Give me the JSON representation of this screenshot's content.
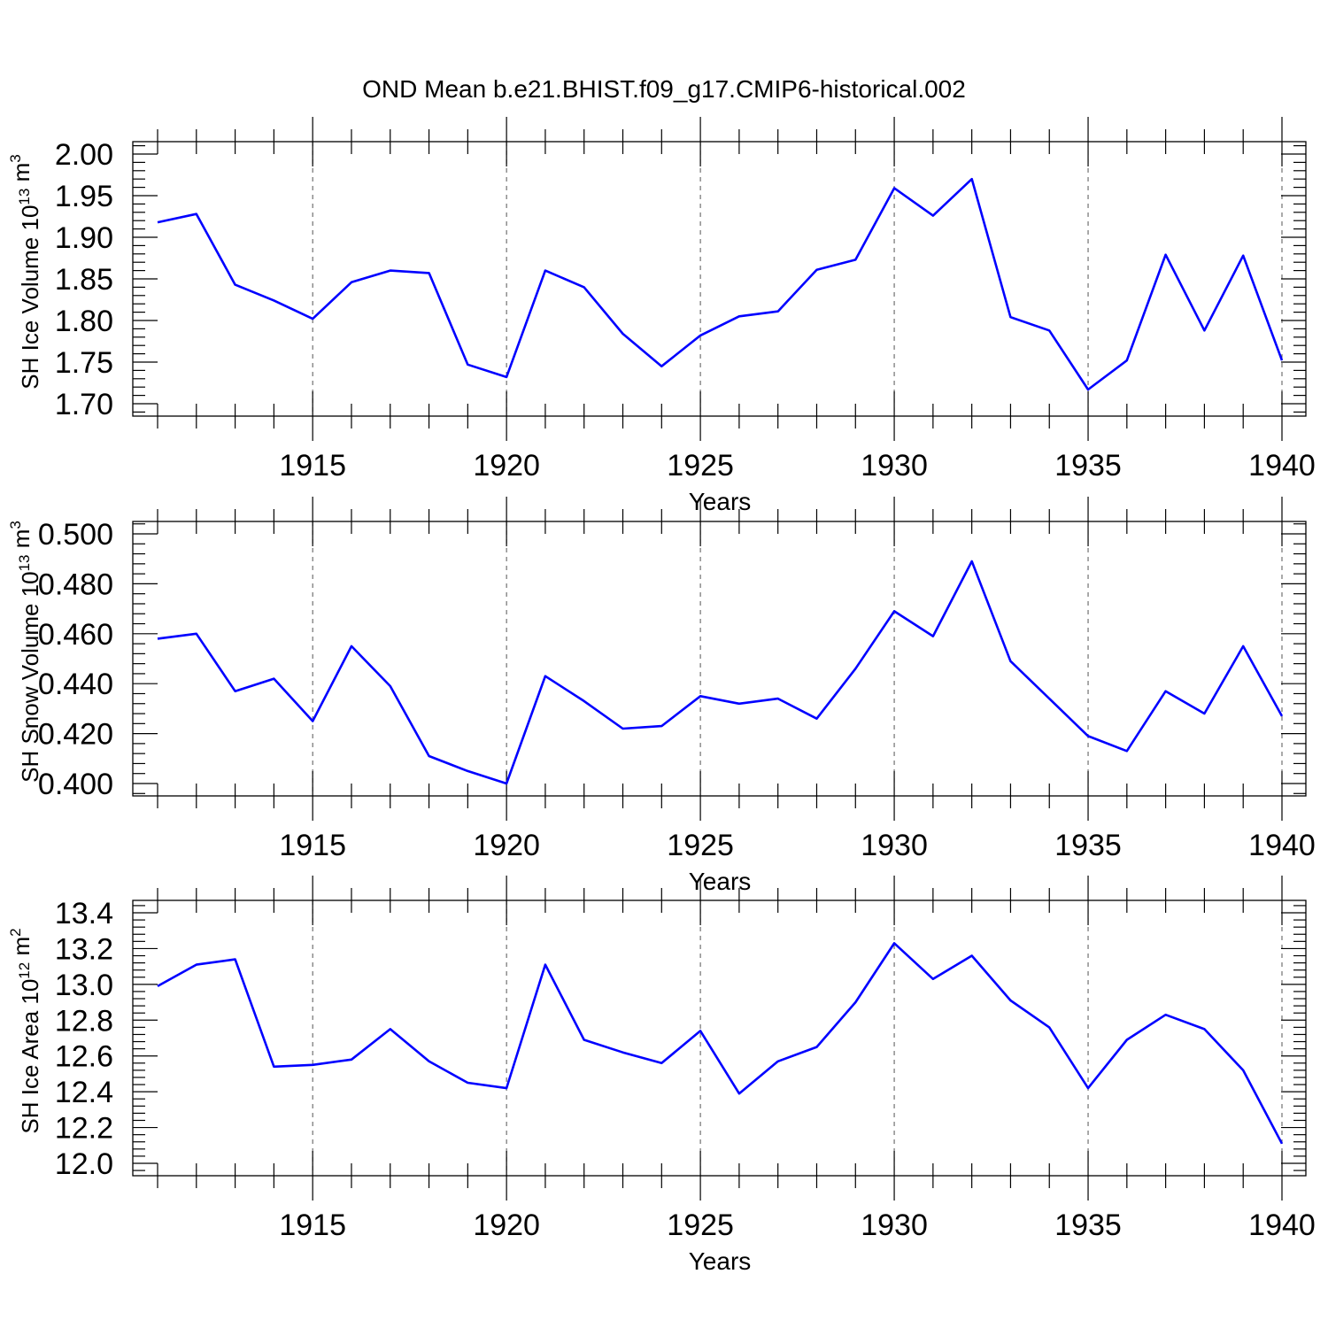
{
  "title": "OND Mean b.e21.BHIST.f09_g17.CMIP6-historical.002",
  "colors": {
    "series": "#0000ff",
    "grid": "#555555",
    "axis": "#000000"
  },
  "chart_data": [
    {
      "type": "line",
      "ylabel": {
        "main": "SH Ice Volume 10",
        "exp": "13",
        "mid": " m",
        "unit_exp": "3"
      },
      "xlabel": "Years",
      "xlim": [
        1911,
        1940
      ],
      "ylim": [
        1.7,
        2.0
      ],
      "x_ticks": [
        1915,
        1920,
        1925,
        1930,
        1935,
        1940
      ],
      "y_ticks": [
        "1.70",
        "1.75",
        "1.80",
        "1.85",
        "1.90",
        "1.95",
        "2.00"
      ],
      "grid": "vertical dashed at major x ticks",
      "x": [
        1911,
        1912,
        1913,
        1914,
        1915,
        1916,
        1917,
        1918,
        1919,
        1920,
        1921,
        1922,
        1923,
        1924,
        1925,
        1926,
        1927,
        1928,
        1929,
        1930,
        1931,
        1932,
        1933,
        1934,
        1935,
        1936,
        1937,
        1938,
        1939,
        1940
      ],
      "values": [
        1.918,
        1.928,
        1.843,
        1.824,
        1.802,
        1.846,
        1.86,
        1.857,
        1.747,
        1.732,
        1.86,
        1.84,
        1.784,
        1.745,
        1.782,
        1.805,
        1.811,
        1.861,
        1.873,
        1.959,
        1.926,
        1.97,
        1.804,
        1.788,
        1.717,
        1.752,
        1.879,
        1.788,
        1.878,
        1.752
      ]
    },
    {
      "type": "line",
      "ylabel": {
        "main": "SH Snow Volume 10",
        "exp": "13",
        "mid": " m",
        "unit_exp": "3"
      },
      "xlabel": "Years",
      "xlim": [
        1911,
        1940
      ],
      "ylim": [
        0.4,
        0.5
      ],
      "x_ticks": [
        1915,
        1920,
        1925,
        1930,
        1935,
        1940
      ],
      "y_ticks": [
        "0.400",
        "0.420",
        "0.440",
        "0.460",
        "0.480",
        "0.500"
      ],
      "grid": "vertical dashed at major x ticks",
      "x": [
        1911,
        1912,
        1913,
        1914,
        1915,
        1916,
        1917,
        1918,
        1919,
        1920,
        1921,
        1922,
        1923,
        1924,
        1925,
        1926,
        1927,
        1928,
        1929,
        1930,
        1931,
        1932,
        1933,
        1934,
        1935,
        1936,
        1937,
        1938,
        1939,
        1940
      ],
      "values": [
        0.458,
        0.46,
        0.437,
        0.442,
        0.425,
        0.455,
        0.439,
        0.411,
        0.405,
        0.4,
        0.443,
        0.433,
        0.422,
        0.423,
        0.435,
        0.432,
        0.434,
        0.426,
        0.446,
        0.469,
        0.459,
        0.489,
        0.449,
        0.434,
        0.419,
        0.413,
        0.437,
        0.428,
        0.455,
        0.427
      ]
    },
    {
      "type": "line",
      "ylabel": {
        "main": "SH Ice Area 10",
        "exp": "12",
        "mid": " m",
        "unit_exp": "2"
      },
      "xlabel": "Years",
      "xlim": [
        1911,
        1940
      ],
      "ylim": [
        12.0,
        13.4
      ],
      "x_ticks": [
        1915,
        1920,
        1925,
        1930,
        1935,
        1940
      ],
      "y_ticks": [
        "12.0",
        "12.2",
        "12.4",
        "12.6",
        "12.8",
        "13.0",
        "13.2",
        "13.4"
      ],
      "grid": "vertical dashed at major x ticks",
      "x": [
        1911,
        1912,
        1913,
        1914,
        1915,
        1916,
        1917,
        1918,
        1919,
        1920,
        1921,
        1922,
        1923,
        1924,
        1925,
        1926,
        1927,
        1928,
        1929,
        1930,
        1931,
        1932,
        1933,
        1934,
        1935,
        1936,
        1937,
        1938,
        1939,
        1940
      ],
      "values": [
        12.99,
        13.11,
        13.14,
        12.54,
        12.55,
        12.58,
        12.75,
        12.57,
        12.45,
        12.42,
        13.11,
        12.69,
        12.62,
        12.56,
        12.74,
        12.39,
        12.57,
        12.65,
        12.9,
        13.23,
        13.03,
        13.16,
        12.91,
        12.76,
        12.42,
        12.69,
        12.83,
        12.75,
        12.52,
        12.11
      ]
    }
  ]
}
